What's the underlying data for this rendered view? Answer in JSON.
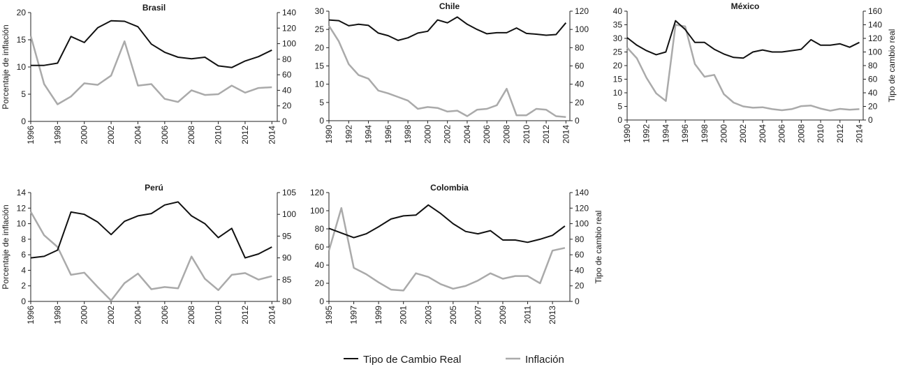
{
  "legend": {
    "items": [
      {
        "label": "Tipo de Cambio Real",
        "color": "#111111"
      },
      {
        "label": "Inflación",
        "color": "#aaaaaa"
      }
    ]
  },
  "chart_data": [
    {
      "type": "line",
      "title": "Brasil",
      "ylabel_left": "Porcentaje de inflación",
      "ylabel_right": "",
      "x_range": [
        1996,
        2014.4
      ],
      "xticks": [
        1996,
        1998,
        2000,
        2002,
        2004,
        2006,
        2008,
        2010,
        2012,
        2014
      ],
      "ylim_left": [
        0,
        20
      ],
      "yticks_left": [
        0,
        5,
        10,
        15,
        20
      ],
      "ylim_right": [
        0,
        140
      ],
      "yticks_right": [
        0,
        20,
        40,
        60,
        80,
        100,
        120,
        140
      ],
      "series": [
        {
          "name": "Tipo de Cambio Real",
          "axis": "left",
          "x": [
            1996,
            1997,
            1998,
            1999,
            2000,
            2001,
            2002,
            2003,
            2004,
            2005,
            2006,
            2007,
            2008,
            2009,
            2010,
            2011,
            2012,
            2013,
            2014
          ],
          "values": [
            10.3,
            10.3,
            10.7,
            15.6,
            14.5,
            17.2,
            18.5,
            18.4,
            17.4,
            14.2,
            12.7,
            11.8,
            11.5,
            11.8,
            10.2,
            9.9,
            11.1,
            11.9,
            13.1
          ]
        },
        {
          "name": "Inflación",
          "axis": "right",
          "x": [
            1996,
            1997,
            1998,
            1999,
            2000,
            2001,
            2002,
            2003,
            2004,
            2005,
            2006,
            2007,
            2008,
            2009,
            2010,
            2011,
            2012,
            2013,
            2014
          ],
          "values": [
            110,
            48,
            22,
            32,
            49,
            47,
            59,
            103,
            46,
            48,
            29,
            25,
            40,
            34,
            35,
            46,
            37,
            43,
            44
          ]
        }
      ]
    },
    {
      "type": "line",
      "title": "Chile",
      "ylabel_left": "",
      "ylabel_right": "",
      "x_range": [
        1990,
        2014.4
      ],
      "xticks": [
        1990,
        1992,
        1994,
        1996,
        1998,
        2000,
        2002,
        2004,
        2006,
        2008,
        2010,
        2012,
        2014
      ],
      "ylim_left": [
        0,
        30
      ],
      "yticks_left": [
        0,
        5,
        10,
        15,
        20,
        25,
        30
      ],
      "ylim_right": [
        0,
        120
      ],
      "yticks_right": [
        0,
        20,
        40,
        60,
        80,
        100,
        120
      ],
      "series": [
        {
          "name": "Tipo de Cambio Real",
          "axis": "left",
          "x": [
            1990,
            1991,
            1992,
            1993,
            1994,
            1995,
            1996,
            1997,
            1998,
            1999,
            2000,
            2001,
            2002,
            2003,
            2004,
            2005,
            2006,
            2007,
            2008,
            2009,
            2010,
            2011,
            2012,
            2013,
            2014
          ],
          "values": [
            27.6,
            27.4,
            26.0,
            26.4,
            26.1,
            24.0,
            23.3,
            22.0,
            22.7,
            24.0,
            24.5,
            27.6,
            26.8,
            28.4,
            26.4,
            25.0,
            23.8,
            24.1,
            24.1,
            25.4,
            23.9,
            23.7,
            23.4,
            23.6,
            26.8
          ]
        },
        {
          "name": "Inflación",
          "axis": "right",
          "x": [
            1990,
            1991,
            1992,
            1993,
            1994,
            1995,
            1996,
            1997,
            1998,
            1999,
            2000,
            2001,
            2002,
            2003,
            2004,
            2005,
            2006,
            2007,
            2008,
            2009,
            2010,
            2011,
            2012,
            2013,
            2014
          ],
          "values": [
            104,
            87,
            62,
            50,
            46,
            33,
            30,
            26,
            22,
            13,
            15,
            14,
            10,
            11,
            5,
            12,
            13,
            17,
            35,
            6,
            6,
            13,
            12,
            5,
            4
          ]
        }
      ]
    },
    {
      "type": "line",
      "title": "México",
      "ylabel_left": "",
      "ylabel_right": "Tipo de cambio real",
      "x_range": [
        1990,
        2014.4
      ],
      "xticks": [
        1990,
        1992,
        1994,
        1996,
        1998,
        2000,
        2002,
        2004,
        2006,
        2008,
        2010,
        2012,
        2014
      ],
      "ylim_left": [
        0,
        40
      ],
      "yticks_left": [
        0,
        5,
        10,
        15,
        20,
        25,
        30,
        35,
        40
      ],
      "ylim_right": [
        0,
        160
      ],
      "yticks_right": [
        0,
        20,
        40,
        60,
        80,
        100,
        120,
        140,
        160
      ],
      "series": [
        {
          "name": "Tipo de Cambio Real",
          "axis": "right",
          "x": [
            1990,
            1991,
            1992,
            1993,
            1994,
            1995,
            1996,
            1997,
            1998,
            1999,
            2000,
            2001,
            2002,
            2003,
            2004,
            2005,
            2006,
            2007,
            2008,
            2009,
            2010,
            2011,
            2012,
            2013,
            2014
          ],
          "values": [
            121,
            110,
            102,
            96,
            100,
            146,
            133,
            114,
            114,
            104,
            97,
            92,
            91,
            100,
            103,
            100,
            100,
            102,
            104,
            118,
            110,
            110,
            112,
            107,
            114
          ]
        },
        {
          "name": "Inflación",
          "axis": "left",
          "x": [
            1990,
            1991,
            1992,
            1993,
            1994,
            1995,
            1996,
            1997,
            1998,
            1999,
            2000,
            2001,
            2002,
            2003,
            2004,
            2005,
            2006,
            2007,
            2008,
            2009,
            2010,
            2011,
            2012,
            2013,
            2014
          ],
          "values": [
            26.6,
            22.7,
            15.5,
            9.8,
            7.0,
            35.0,
            34.4,
            20.6,
            15.9,
            16.6,
            9.5,
            6.4,
            5.0,
            4.5,
            4.7,
            4.0,
            3.6,
            4.0,
            5.1,
            5.3,
            4.2,
            3.4,
            4.1,
            3.8,
            4.0
          ]
        }
      ]
    },
    {
      "type": "line",
      "title": "Perú",
      "ylabel_left": "Porcentaje de inflación",
      "ylabel_right": "",
      "x_range": [
        1996,
        2014.4
      ],
      "xticks": [
        1996,
        1998,
        2000,
        2002,
        2004,
        2006,
        2008,
        2010,
        2012,
        2014
      ],
      "ylim_left": [
        0,
        14
      ],
      "yticks_left": [
        0,
        2,
        4,
        6,
        8,
        10,
        12,
        14
      ],
      "ylim_right": [
        80,
        105
      ],
      "yticks_right": [
        80,
        85,
        90,
        95,
        100,
        105
      ],
      "series": [
        {
          "name": "Tipo de Cambio Real",
          "axis": "left",
          "x": [
            1996,
            1997,
            1998,
            1999,
            2000,
            2001,
            2002,
            2003,
            2004,
            2005,
            2006,
            2007,
            2008,
            2009,
            2010,
            2011,
            2012,
            2013,
            2014
          ],
          "values": [
            5.6,
            5.8,
            6.6,
            11.5,
            11.2,
            10.2,
            8.6,
            10.3,
            11.0,
            11.3,
            12.4,
            12.8,
            11.0,
            10.0,
            8.2,
            9.4,
            5.6,
            6.1,
            7.0
          ]
        },
        {
          "name": "Inflación",
          "axis": "right",
          "x": [
            1996,
            1997,
            1998,
            1999,
            2000,
            2001,
            2002,
            2003,
            2004,
            2005,
            2006,
            2007,
            2008,
            2009,
            2010,
            2011,
            2012,
            2013,
            2014
          ],
          "values": [
            100.6,
            95.2,
            92.5,
            86.1,
            86.6,
            83.3,
            80.2,
            84.2,
            86.4,
            82.8,
            83.3,
            83.0,
            90.3,
            85.2,
            82.6,
            86.1,
            86.5,
            85.0,
            85.8
          ]
        }
      ]
    },
    {
      "type": "line",
      "title": "Colombia",
      "ylabel_left": "",
      "ylabel_right": "Tipo de cambio real",
      "x_range": [
        1995,
        2014.4
      ],
      "xticks": [
        1995,
        1997,
        1999,
        2001,
        2003,
        2005,
        2007,
        2009,
        2011,
        2013
      ],
      "ylim_left": [
        0,
        120
      ],
      "yticks_left": [
        0,
        20,
        40,
        60,
        80,
        100,
        120
      ],
      "ylim_right": [
        0,
        140
      ],
      "yticks_right": [
        0,
        20,
        40,
        60,
        80,
        100,
        120,
        140
      ],
      "series": [
        {
          "name": "Tipo de Cambio Real",
          "axis": "right",
          "x": [
            1995,
            1996,
            1997,
            1998,
            1999,
            2000,
            2001,
            2002,
            2003,
            2004,
            2005,
            2006,
            2007,
            2008,
            2009,
            2010,
            2011,
            2012,
            2013,
            2014
          ],
          "values": [
            94,
            88,
            82,
            87,
            96,
            106,
            110,
            111,
            124,
            113,
            100,
            90,
            87,
            91,
            79,
            79,
            76,
            80,
            85,
            97
          ]
        },
        {
          "name": "Inflación",
          "axis": "left",
          "x": [
            1995,
            1996,
            1997,
            1998,
            1999,
            2000,
            2001,
            2002,
            2003,
            2004,
            2005,
            2006,
            2007,
            2008,
            2009,
            2010,
            2011,
            2012,
            2013,
            2014
          ],
          "values": [
            56,
            103,
            37,
            30,
            21,
            13,
            12,
            31,
            27,
            19,
            14,
            17,
            23,
            31,
            25,
            28,
            28,
            20,
            56,
            59
          ]
        }
      ]
    }
  ]
}
